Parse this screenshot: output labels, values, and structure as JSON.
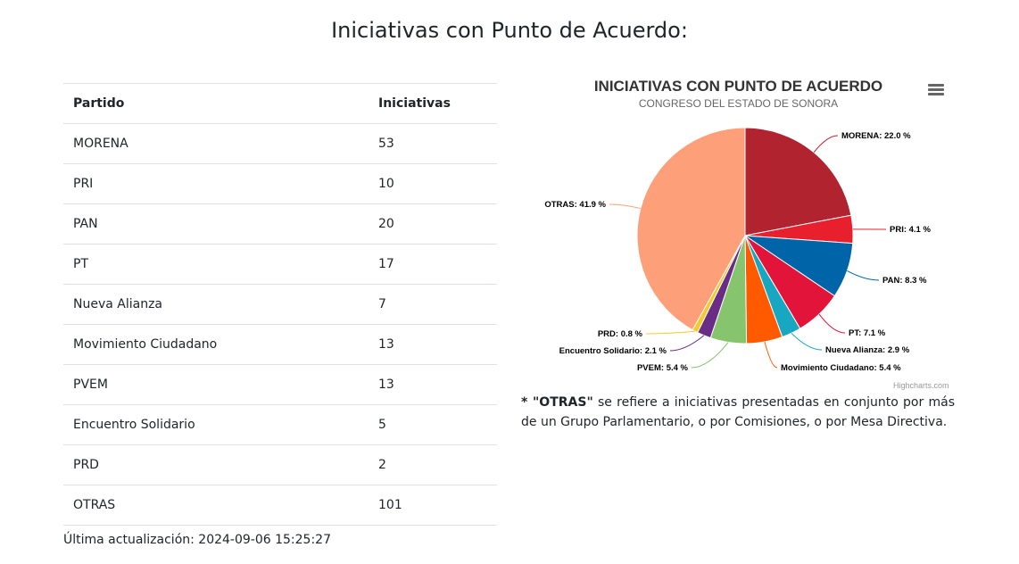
{
  "page": {
    "title": "Iniciativas con Punto de Acuerdo:",
    "updated_label": "Última actualización: 2024-09-06 15:25:27"
  },
  "table": {
    "headers": [
      "Partido",
      "Iniciativas"
    ],
    "rows": [
      [
        "MORENA",
        "53"
      ],
      [
        "PRI",
        "10"
      ],
      [
        "PAN",
        "20"
      ],
      [
        "PT",
        "17"
      ],
      [
        "Nueva Alianza",
        "7"
      ],
      [
        "Movimiento Ciudadano",
        "13"
      ],
      [
        "PVEM",
        "13"
      ],
      [
        "Encuentro Solidario",
        "5"
      ],
      [
        "PRD",
        "2"
      ],
      [
        "OTRAS",
        "101"
      ]
    ]
  },
  "chart_data": {
    "type": "pie",
    "title": "INICIATIVAS CON PUNTO DE ACUERDO",
    "subtitle": "CONGRESO DEL ESTADO DE SONORA",
    "credits": "Highcharts.com",
    "menu_icon": "hamburger-menu-icon",
    "slices": [
      {
        "name": "MORENA",
        "value": 53,
        "label": "MORENA: 22.0 %",
        "color": "#b22330"
      },
      {
        "name": "PRI",
        "value": 10,
        "label": "PRI: 4.1 %",
        "color": "#e8202e"
      },
      {
        "name": "PAN",
        "value": 20,
        "label": "PAN: 8.3 %",
        "color": "#0065a8"
      },
      {
        "name": "PT",
        "value": 17,
        "label": "PT: 7.1 %",
        "color": "#e3143a"
      },
      {
        "name": "Nueva Alianza",
        "value": 7,
        "label": "Nueva Alianza: 2.9 %",
        "color": "#17a7c1"
      },
      {
        "name": "Movimiento Ciudadano",
        "value": 13,
        "label": "Movimiento Ciudadano: 5.4 %",
        "color": "#ff5a00"
      },
      {
        "name": "PVEM",
        "value": 13,
        "label": "PVEM: 5.4 %",
        "color": "#86c46e"
      },
      {
        "name": "Encuentro Solidario",
        "value": 5,
        "label": "Encuentro Solidario: 2.1 %",
        "color": "#6a2d86"
      },
      {
        "name": "PRD",
        "value": 2,
        "label": "PRD: 0.8 %",
        "color": "#f8c92a"
      },
      {
        "name": "OTRAS",
        "value": 101,
        "label": "OTRAS: 41.9 %",
        "color": "#fda07a"
      }
    ]
  },
  "note": {
    "bold": "* \"OTRAS\"",
    "text": " se refiere a iniciativas presentadas en conjunto por más de un Grupo Parlamentario, o por Comisiones, o por Mesa Directiva."
  }
}
